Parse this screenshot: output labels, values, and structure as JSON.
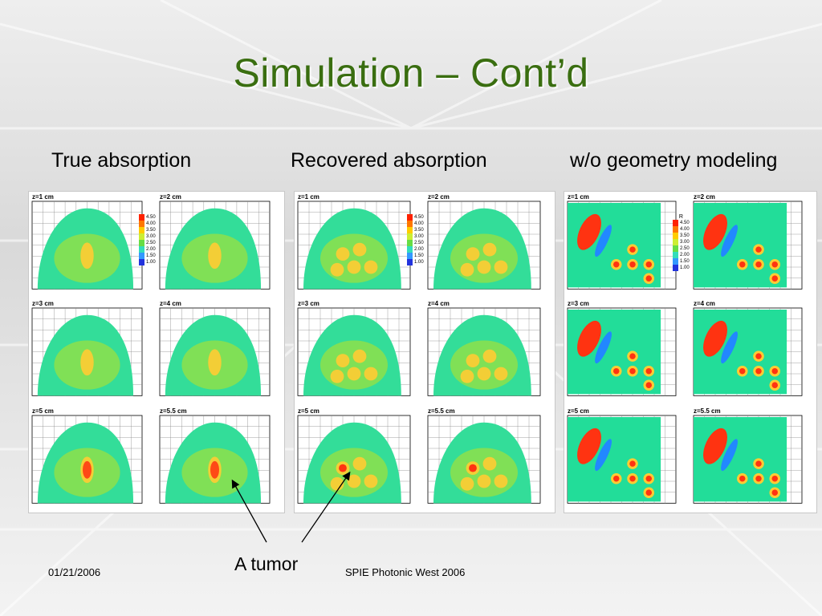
{
  "slide": {
    "title": "Simulation – Cont’d",
    "columns": [
      "True absorption",
      "Recovered absorption",
      "w/o geometry modeling"
    ],
    "annotation": "A tumor",
    "footer_left": "01/21/2006",
    "footer_center": "SPIE Photonic West 2006"
  },
  "panels": [
    {
      "slices": [
        "z=1 cm",
        "z=2 cm",
        "z=3 cm",
        "z=4 cm",
        "z=5 cm",
        "z=5.5 cm"
      ],
      "legend": [
        "4.50",
        "4.00",
        "3.50",
        "3.00",
        "2.50",
        "2.00",
        "1.50",
        "1.00"
      ]
    },
    {
      "slices": [
        "z=1 cm",
        "z=2 cm",
        "z=3 cm",
        "z=4 cm",
        "z=5 cm",
        "z=5.5 cm"
      ],
      "legend": [
        "4.50",
        "4.00",
        "3.50",
        "3.00",
        "2.50",
        "2.00",
        "1.50",
        "1.00"
      ]
    },
    {
      "slices": [
        "z=1 cm",
        "z=2 cm",
        "z=3 cm",
        "z=4 cm",
        "z=5 cm",
        "z=5.5 cm"
      ],
      "legend_title": "R",
      "legend": [
        "4.50",
        "4.00",
        "3.50",
        "3.00",
        "2.50",
        "2.00",
        "1.50",
        "1.00"
      ]
    }
  ],
  "colors": {
    "title": "#3a6e10",
    "background_field": "#33dd88",
    "mid": "#8ee04a",
    "high": "#ffcc33",
    "peak": "#ff3311",
    "low": "#2288ff"
  }
}
